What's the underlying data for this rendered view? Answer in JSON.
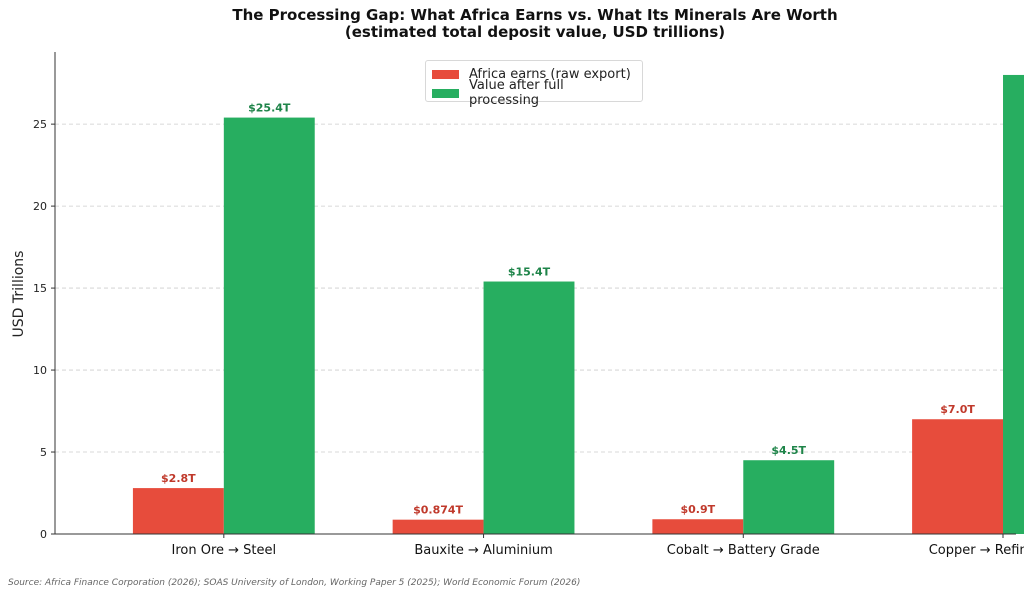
{
  "chart_data": {
    "type": "bar",
    "title": "The Processing Gap: What Africa Earns vs. What Its Minerals Are Worth",
    "subtitle": "(estimated total deposit value, USD trillions)",
    "xlabel": "",
    "ylabel": "USD Trillions",
    "categories": [
      "Iron Ore → Steel",
      "Bauxite → Aluminium",
      "Cobalt → Battery Grade",
      "Copper → Refined Wire"
    ],
    "series": [
      {
        "name": "Africa earns (raw export)",
        "color": "#e74c3c",
        "label_color": "#c0392b",
        "values": [
          2.8,
          0.874,
          0.9,
          7.0
        ],
        "labels": [
          "$2.8T",
          "$0.874T",
          "$0.9T",
          "$7.0T"
        ]
      },
      {
        "name": "Value after full processing",
        "color": "#27ae60",
        "label_color": "#1e8449",
        "values": [
          25.4,
          15.4,
          4.5,
          28.0
        ],
        "labels": [
          "$25.4T",
          "$15.4T",
          "$4.5T",
          "$28.0T"
        ]
      }
    ],
    "ylim": [
      0,
      29.4
    ],
    "yticks": [
      0,
      5,
      10,
      15,
      20,
      25
    ],
    "grid": "y-dashed",
    "legend_position": "top-center"
  },
  "source": "Source: Africa Finance Corporation (2026); SOAS University of London, Working Paper 5 (2025); World Economic Forum (2026)"
}
